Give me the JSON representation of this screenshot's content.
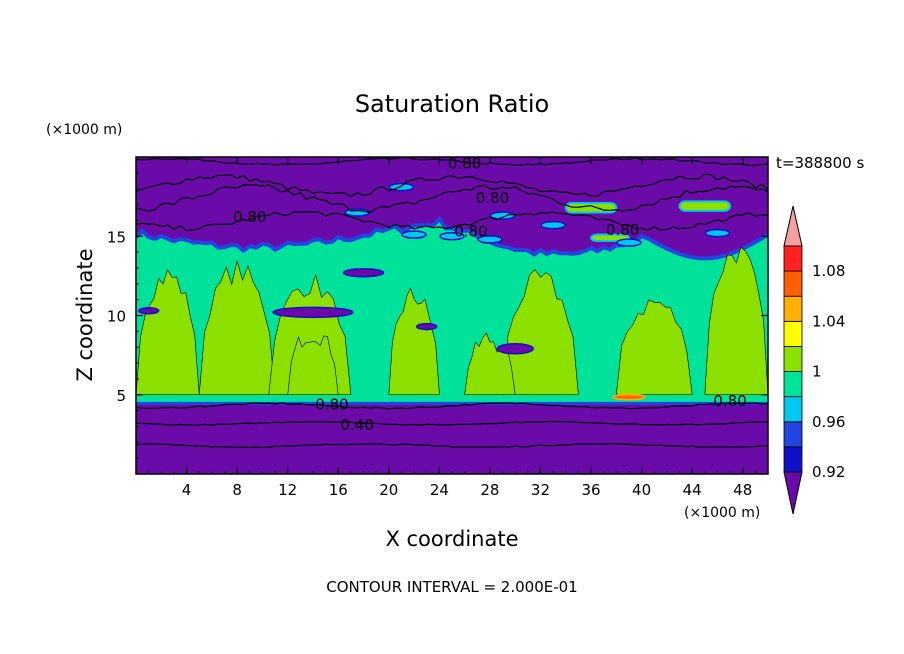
{
  "chart_data": {
    "type": "heatmap",
    "title": "Saturation Ratio",
    "xlabel": "X coordinate",
    "ylabel": "Z coordinate",
    "x_unit": "(×1000 m)",
    "y_unit": "(×1000 m)",
    "time_label": "t=388800 s",
    "footer": "CONTOUR INTERVAL = 2.000E-01",
    "xlim": [
      0,
      50
    ],
    "ylim": [
      0,
      20
    ],
    "xticks": [
      4,
      8,
      12,
      16,
      20,
      24,
      28,
      32,
      36,
      40,
      44,
      48
    ],
    "yticks": [
      5,
      10,
      15
    ],
    "colorbar": {
      "levels": [
        0.92,
        0.94,
        0.96,
        0.98,
        1.0,
        1.02,
        1.04,
        1.06,
        1.08,
        1.1
      ],
      "labels": [
        "0.92",
        "0.96",
        "1",
        "1.04",
        "1.08"
      ],
      "colors": [
        "#5a1c9e",
        "#1010c8",
        "#2244e0",
        "#00c8f0",
        "#00e29a",
        "#8ce000",
        "#ffff00",
        "#ffb000",
        "#ff6000",
        "#ff2020",
        "#f4a0a0"
      ],
      "under_color": "#6a0aa8",
      "over_color": "#f4a0a0"
    },
    "contour_lines": [
      {
        "label": "0.80",
        "x": 26.0,
        "y": 19.6
      },
      {
        "label": "0.80",
        "x": 28.2,
        "y": 17.4
      },
      {
        "label": "0.80",
        "x": 9.0,
        "y": 16.2
      },
      {
        "label": "0.80",
        "x": 26.5,
        "y": 15.3
      },
      {
        "label": "0.80",
        "x": 38.5,
        "y": 15.4
      },
      {
        "label": "0.80",
        "x": 15.5,
        "y": 4.4
      },
      {
        "label": "0.80",
        "x": 47.0,
        "y": 4.6
      },
      {
        "label": "0.40",
        "x": 17.5,
        "y": 3.1
      }
    ],
    "regions": [
      {
        "level": "<0.92",
        "desc": "upper layer above ~16 km and lower layer below ~4.5 km"
      },
      {
        "level": "0.98-1.0",
        "desc": "mid layer 4.5-15 km"
      },
      {
        "level": "1.0-1.02",
        "desc": "convective plumes"
      },
      {
        "level": ">1.04",
        "desc": "small spots near x=38-40, z=5"
      }
    ]
  }
}
